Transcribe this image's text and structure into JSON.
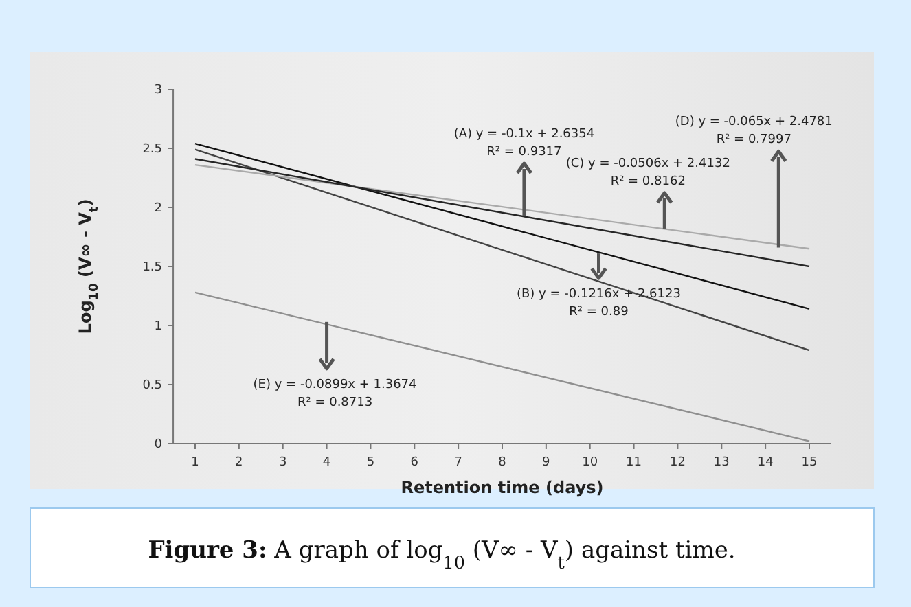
{
  "chart_data": {
    "type": "line",
    "xlabel": "Retention time (days)",
    "ylabel": "Log$_{10}$ (V∞ - V$_{t}$)",
    "xlim": [
      0.5,
      15.5
    ],
    "xticks": [
      1,
      2,
      3,
      4,
      5,
      6,
      7,
      8,
      9,
      10,
      11,
      12,
      13,
      14,
      15
    ],
    "ylim": [
      0,
      3
    ],
    "yticks": [
      0,
      0.5,
      1,
      1.5,
      2,
      2.5,
      3
    ],
    "grid": false,
    "marker": "none",
    "x": [
      1,
      15
    ],
    "line_style": "solid",
    "series": [
      {
        "color": "#111111",
        "values": [
          2.54,
          1.14
        ]
      },
      {
        "color": "#444444",
        "values": [
          2.49,
          0.79
        ]
      },
      {
        "color": "#aaaaaa",
        "values": [
          2.36,
          1.65
        ]
      },
      {
        "color": "#262626",
        "values": [
          2.41,
          1.5
        ]
      },
      {
        "color": "#8f8f8f",
        "values": [
          1.28,
          0.02
        ]
      }
    ],
    "annotations": [
      {
        "text": "(A) y = -0.1x + 2.6354\nR² = 0.9317",
        "x": 8.5,
        "y": 1.93
      },
      {
        "text": "(B) y = -0.1216x + 2.6123\nR² = 0.89",
        "x": 10.2,
        "y": 1.61
      },
      {
        "text": "(C) y = -0.0506x + 2.4132\nR² = 0.8162",
        "x": 11.7,
        "y": 1.82
      },
      {
        "text": "(D) y = -0.065x + 2.4781\nR² = 0.7997",
        "x": 14.3,
        "y": 1.66
      },
      {
        "text": "(E) y = -0.0899x + 1.3674\nR² = 0.8713",
        "x": 4,
        "y": 1.03
      },
      "**Figure 3:** A graph of log$_{10}$ (V∞ - V$_{t}$) against time."
    ]
  }
}
